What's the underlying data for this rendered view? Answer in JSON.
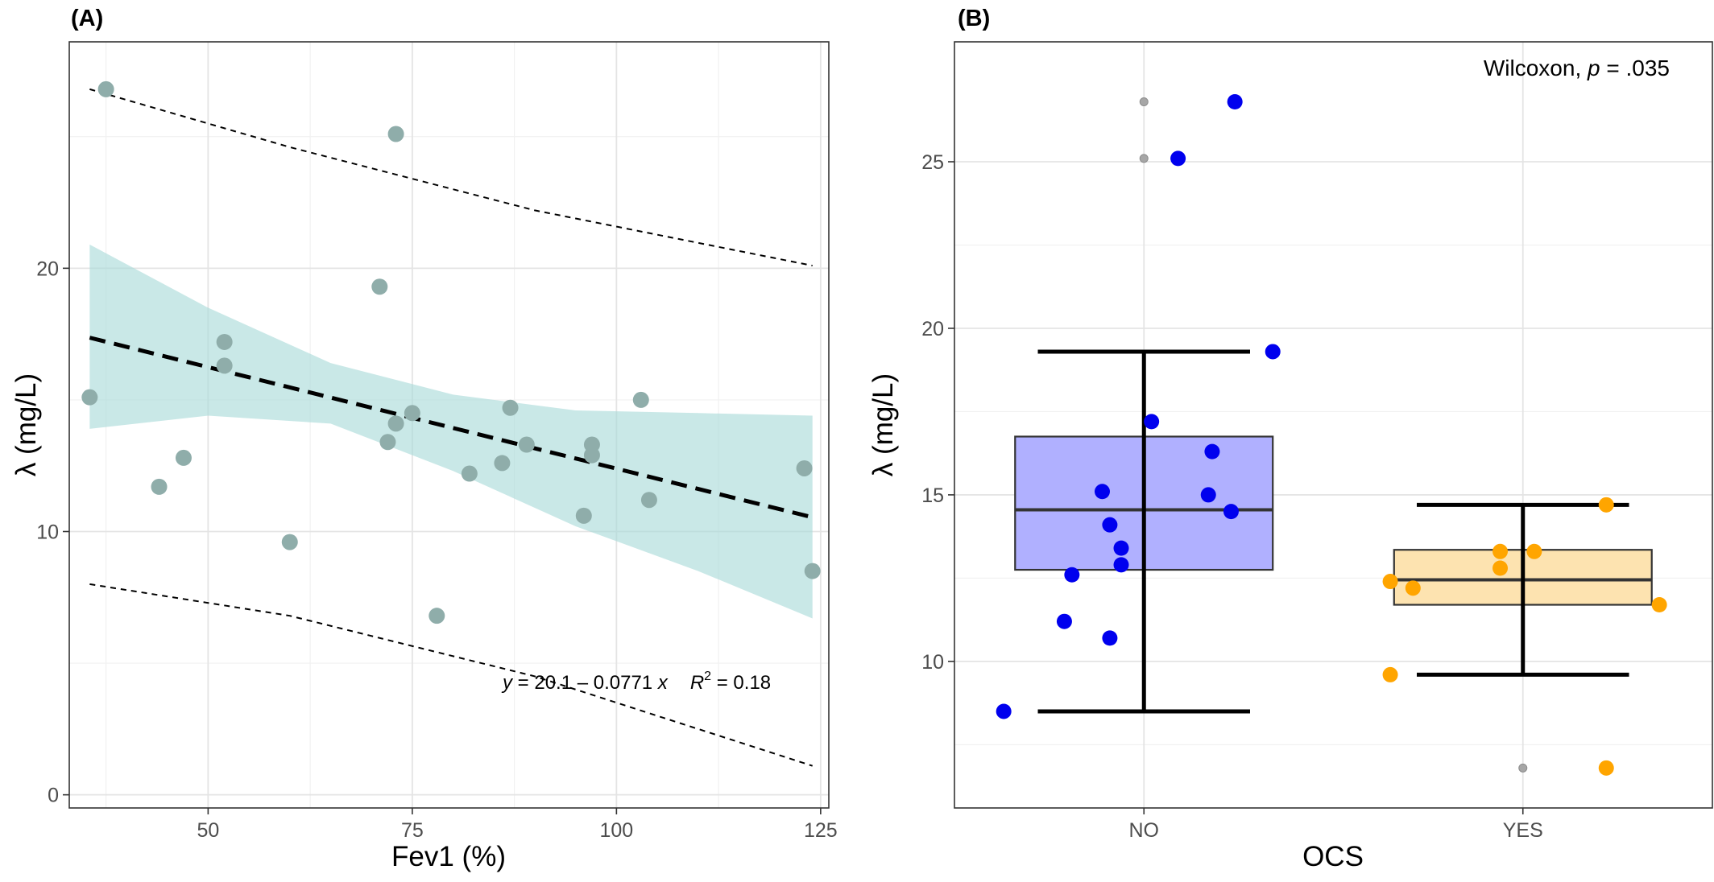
{
  "panels": [
    {
      "panel_label": "(A)",
      "chart_data": {
        "type": "scatter",
        "xlabel": "Fev1 (%)",
        "ylabel": "λ (mg/L)",
        "xlim": [
          33,
          126
        ],
        "ylim": [
          -0.5,
          28.6
        ],
        "xticks": [
          50,
          75,
          100,
          125
        ],
        "yticks": [
          0,
          10,
          20
        ],
        "grid": true,
        "points": [
          {
            "x": 35.5,
            "y": 15.1
          },
          {
            "x": 37.5,
            "y": 26.8
          },
          {
            "x": 44.0,
            "y": 11.7
          },
          {
            "x": 47.0,
            "y": 12.8
          },
          {
            "x": 52.0,
            "y": 17.2
          },
          {
            "x": 52.0,
            "y": 16.3
          },
          {
            "x": 60.0,
            "y": 9.6
          },
          {
            "x": 71.0,
            "y": 19.3
          },
          {
            "x": 72.0,
            "y": 13.4
          },
          {
            "x": 73.0,
            "y": 14.1
          },
          {
            "x": 73.0,
            "y": 25.1
          },
          {
            "x": 75.0,
            "y": 14.5
          },
          {
            "x": 78.0,
            "y": 6.8
          },
          {
            "x": 82.0,
            "y": 12.2
          },
          {
            "x": 86.0,
            "y": 12.6
          },
          {
            "x": 87.0,
            "y": 14.7
          },
          {
            "x": 89.0,
            "y": 13.3
          },
          {
            "x": 96.0,
            "y": 10.6
          },
          {
            "x": 97.0,
            "y": 13.3
          },
          {
            "x": 97.0,
            "y": 12.9
          },
          {
            "x": 103.0,
            "y": 15.0
          },
          {
            "x": 104.0,
            "y": 11.2
          },
          {
            "x": 123.0,
            "y": 12.4
          },
          {
            "x": 124.0,
            "y": 8.5
          }
        ],
        "regression": {
          "intercept": 20.1,
          "slope": -0.0771,
          "x_range": [
            35.5,
            124
          ]
        },
        "confidence_band": [
          {
            "x": 35.5,
            "lo": 13.9,
            "hi": 20.9
          },
          {
            "x": 50,
            "lo": 14.4,
            "hi": 18.5
          },
          {
            "x": 65,
            "lo": 14.1,
            "hi": 16.4
          },
          {
            "x": 80,
            "lo": 12.3,
            "hi": 15.2
          },
          {
            "x": 95,
            "lo": 10.2,
            "hi": 14.6
          },
          {
            "x": 110,
            "lo": 8.5,
            "hi": 14.5
          },
          {
            "x": 124,
            "lo": 6.7,
            "hi": 14.4
          }
        ],
        "prediction_interval": [
          {
            "x": 35.5,
            "lo": 8.0,
            "hi": 26.8
          },
          {
            "x": 60,
            "lo": 6.8,
            "hi": 24.6
          },
          {
            "x": 90,
            "lo": 4.5,
            "hi": 22.2
          },
          {
            "x": 124,
            "lo": 1.1,
            "hi": 20.1
          }
        ],
        "annotation": {
          "y_sym": "y",
          "eq_text": " = 20.1 – 0.0771 ",
          "x_sym": "x",
          "r_sym": "R",
          "r_sup": "2",
          "r_val": " = 0.18"
        },
        "colors": {
          "points": "#8fadaa",
          "band": "#a8dad8",
          "line": "#000000"
        }
      }
    },
    {
      "panel_label": "(B)",
      "chart_data": {
        "type": "box",
        "xlabel": "OCS",
        "ylabel": "λ (mg/L)",
        "categories": [
          "NO",
          "YES"
        ],
        "ylim": [
          5.6,
          28.6
        ],
        "yticks": [
          10,
          15,
          20,
          25
        ],
        "grid": true,
        "annotation": {
          "prefix": "Wilcoxon, ",
          "p_sym": "p",
          "suffix": " = .035"
        },
        "boxes": [
          {
            "category": "NO",
            "q1": 12.75,
            "median": 14.55,
            "q3": 16.75,
            "whisker_low": 8.5,
            "whisker_high": 19.3,
            "outliers": [
              25.1,
              26.8
            ],
            "fill": "#b0b0ff",
            "point_color": "#0000ee"
          },
          {
            "category": "YES",
            "q1": 11.7,
            "median": 12.45,
            "q3": 13.35,
            "whisker_low": 9.6,
            "whisker_high": 14.7,
            "outliers": [
              6.8
            ],
            "fill": "#fde3b0",
            "point_color": "#ffa500"
          }
        ],
        "points": [
          {
            "category": "NO",
            "jitter": -0.37,
            "y": 8.5
          },
          {
            "category": "NO",
            "jitter": -0.21,
            "y": 11.2
          },
          {
            "category": "NO",
            "jitter": -0.09,
            "y": 10.7
          },
          {
            "category": "NO",
            "jitter": -0.19,
            "y": 12.6
          },
          {
            "category": "NO",
            "jitter": -0.06,
            "y": 12.9
          },
          {
            "category": "NO",
            "jitter": -0.06,
            "y": 13.4
          },
          {
            "category": "NO",
            "jitter": -0.09,
            "y": 14.1
          },
          {
            "category": "NO",
            "jitter": -0.11,
            "y": 15.1
          },
          {
            "category": "NO",
            "jitter": 0.17,
            "y": 15.0
          },
          {
            "category": "NO",
            "jitter": 0.18,
            "y": 16.3
          },
          {
            "category": "NO",
            "jitter": 0.02,
            "y": 17.2
          },
          {
            "category": "NO",
            "jitter": 0.23,
            "y": 14.5
          },
          {
            "category": "NO",
            "jitter": 0.34,
            "y": 19.3
          },
          {
            "category": "NO",
            "jitter": 0.09,
            "y": 25.1
          },
          {
            "category": "NO",
            "jitter": 0.24,
            "y": 26.8
          },
          {
            "category": "YES",
            "jitter": -0.35,
            "y": 9.6
          },
          {
            "category": "YES",
            "jitter": -0.29,
            "y": 12.2
          },
          {
            "category": "YES",
            "jitter": -0.35,
            "y": 12.4
          },
          {
            "category": "YES",
            "jitter": -0.06,
            "y": 13.3
          },
          {
            "category": "YES",
            "jitter": 0.03,
            "y": 13.3
          },
          {
            "category": "YES",
            "jitter": -0.06,
            "y": 12.8
          },
          {
            "category": "YES",
            "jitter": 0.22,
            "y": 14.7
          },
          {
            "category": "YES",
            "jitter": 0.36,
            "y": 11.7
          },
          {
            "category": "YES",
            "jitter": 0.22,
            "y": 6.8
          }
        ]
      }
    }
  ]
}
